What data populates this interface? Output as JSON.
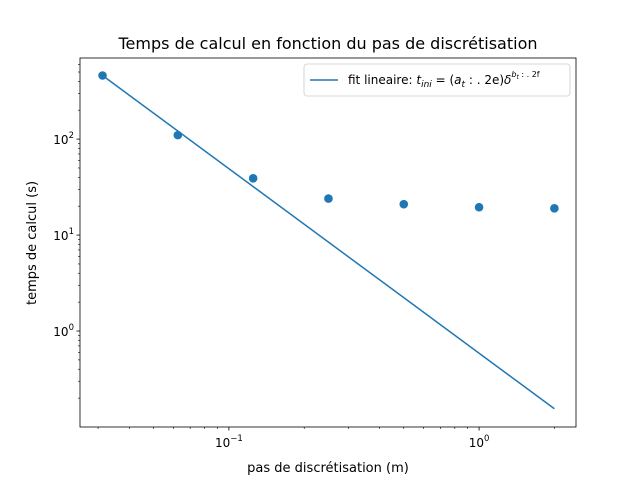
{
  "chart_data": {
    "type": "scatter",
    "title": "Temps de calcul en fonction du pas de discrétisation",
    "xlabel": "pas de discrétisation (m)",
    "ylabel": "temps de calcul (s)",
    "xscale": "log",
    "yscale": "log",
    "xlim": [
      0.0254,
      2.44
    ],
    "ylim": [
      0.1,
      700
    ],
    "grid": false,
    "legend_position": "top-right",
    "x_ticks": [
      {
        "value": 0.1,
        "label_base": "10",
        "label_exp": "−1"
      },
      {
        "value": 1,
        "label_base": "10",
        "label_exp": "0"
      }
    ],
    "y_ticks": [
      {
        "value": 1,
        "label_base": "10",
        "label_exp": "0"
      },
      {
        "value": 10,
        "label_base": "10",
        "label_exp": "1"
      },
      {
        "value": 100,
        "label_base": "10",
        "label_exp": "2"
      }
    ],
    "series": [
      {
        "kind": "points",
        "color": "#1f77b4",
        "x": [
          0.03125,
          0.0625,
          0.125,
          0.25,
          0.5,
          1,
          2
        ],
        "y": [
          460,
          110,
          39,
          24,
          21,
          19.5,
          19
        ]
      },
      {
        "kind": "line",
        "color": "#1f77b4",
        "name": "fit lineaire: t_ini = (a_t : . 2e)δ^(b_t : . 2f)",
        "x": [
          0.03125,
          2
        ],
        "y": [
          460,
          0.155
        ]
      }
    ],
    "legend": {
      "prefix": "fit lineaire: ",
      "math_t": "t",
      "math_t_sub": "ini",
      "math_eq": " = (",
      "math_a": "a",
      "math_a_sub": "t",
      "math_fmt": " : . 2e)",
      "math_delta": "δ",
      "math_exp_b": "b",
      "math_exp_b_sub": "t",
      "math_exp_fmt": " : . 2f"
    }
  }
}
